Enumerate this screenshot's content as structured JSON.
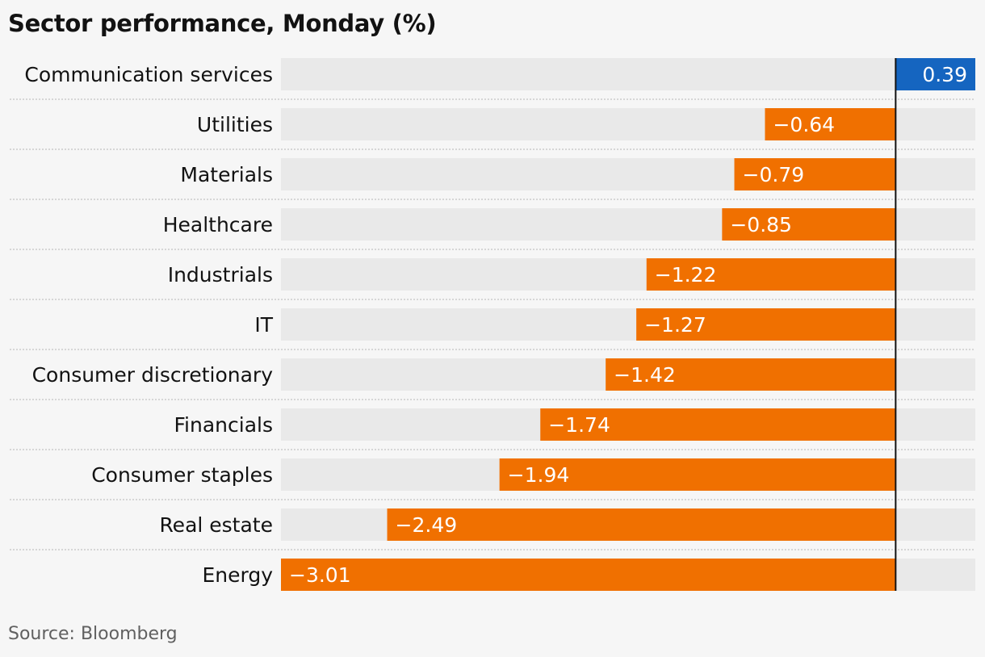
{
  "chart_data": {
    "type": "bar",
    "orientation": "horizontal",
    "title": "Sector performance, Monday (%)",
    "source": "Source: Bloomberg",
    "categories": [
      "Communication services",
      "Utilities",
      "Materials",
      "Healthcare",
      "Industrials",
      "IT",
      "Consumer discretionary",
      "Financials",
      "Consumer staples",
      "Real estate",
      "Energy"
    ],
    "values": [
      0.39,
      -0.64,
      -0.79,
      -0.85,
      -1.22,
      -1.27,
      -1.42,
      -1.74,
      -1.94,
      -2.49,
      -3.01
    ],
    "value_labels": [
      "0.39",
      "−0.64",
      "−0.79",
      "−0.85",
      "−1.22",
      "−1.27",
      "−1.42",
      "−1.74",
      "−1.94",
      "−2.49",
      "−3.01"
    ],
    "xlim": [
      -3.01,
      0.39
    ],
    "grid": false,
    "colors": {
      "positive": "#1565c0",
      "negative": "#f07000",
      "track": "#e9e9e9",
      "zero_line": "#121212",
      "separator": "#c4c4c4"
    }
  }
}
